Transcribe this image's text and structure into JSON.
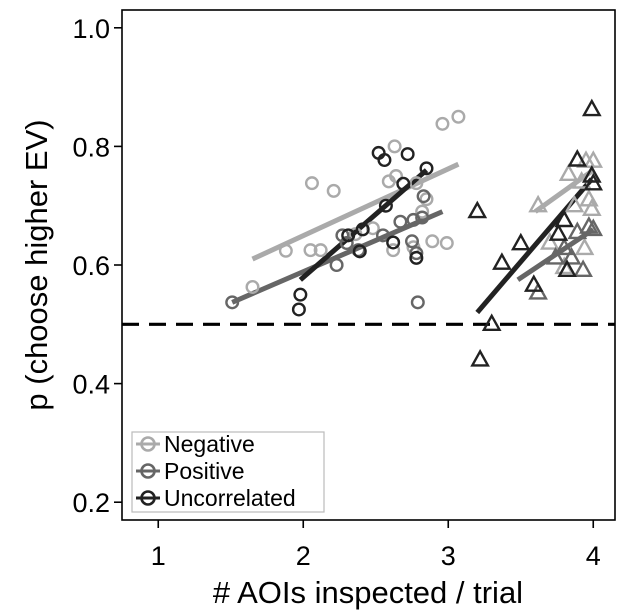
{
  "chart_data": {
    "type": "scatter",
    "title": "",
    "xlabel": "# AOIs inspected / trial",
    "ylabel": "p (choose higher EV)",
    "xlim": [
      0.75,
      4.15
    ],
    "ylim": [
      0.17,
      1.03
    ],
    "x_ticks": [
      1,
      2,
      3,
      4
    ],
    "y_ticks": [
      0.2,
      0.4,
      0.6,
      0.8,
      1.0
    ],
    "x_tick_labels": [
      "1",
      "2",
      "3",
      "4"
    ],
    "y_tick_labels": [
      "0.2",
      "0.4",
      "0.6",
      "0.8",
      "1.0"
    ],
    "grid": false,
    "legend_position": "bottom-left",
    "reference_line": {
      "y": 0.5,
      "style": "dashed",
      "color": "#000000"
    },
    "series": [
      {
        "name": "Negative",
        "color": "#aaaaaa",
        "points_circle": [
          [
            1.65,
            0.563
          ],
          [
            1.88,
            0.624
          ],
          [
            2.06,
            0.738
          ],
          [
            2.21,
            0.725
          ],
          [
            2.05,
            0.625
          ],
          [
            2.12,
            0.625
          ],
          [
            2.36,
            0.652
          ],
          [
            2.48,
            0.662
          ],
          [
            2.63,
            0.8
          ],
          [
            2.64,
            0.75
          ],
          [
            2.59,
            0.741
          ],
          [
            2.85,
            0.711
          ],
          [
            2.78,
            0.738
          ],
          [
            2.82,
            0.69
          ],
          [
            2.76,
            0.63
          ],
          [
            2.89,
            0.64
          ],
          [
            2.62,
            0.625
          ],
          [
            2.96,
            0.838
          ],
          [
            3.07,
            0.85
          ],
          [
            2.99,
            0.637
          ]
        ],
        "points_triangle": [
          [
            3.62,
            0.7
          ],
          [
            3.83,
            0.753
          ],
          [
            3.7,
            0.637
          ],
          [
            3.95,
            0.775
          ],
          [
            4.0,
            0.775
          ],
          [
            3.92,
            0.74
          ],
          [
            3.97,
            0.71
          ],
          [
            3.87,
            0.7
          ],
          [
            3.94,
            0.628
          ],
          [
            3.8,
            0.596
          ],
          [
            3.99,
            0.694
          ]
        ],
        "fit_segments": [
          {
            "x": [
              1.65,
              3.07
            ],
            "y": [
              0.61,
              0.77
            ]
          },
          {
            "x": [
              3.6,
              4.0
            ],
            "y": [
              0.69,
              0.76
            ]
          }
        ]
      },
      {
        "name": "Positive",
        "color": "#666666",
        "points_circle": [
          [
            1.51,
            0.537
          ],
          [
            2.23,
            0.6
          ],
          [
            2.38,
            0.625
          ],
          [
            2.3,
            0.637
          ],
          [
            2.55,
            0.65
          ],
          [
            2.67,
            0.673
          ],
          [
            2.75,
            0.64
          ],
          [
            2.78,
            0.62
          ],
          [
            2.82,
            0.68
          ],
          [
            2.79,
            0.537
          ],
          [
            2.76,
            0.676
          ],
          [
            2.83,
            0.716
          ],
          [
            2.27,
            0.65
          ]
        ],
        "points_triangle": [
          [
            3.62,
            0.553
          ],
          [
            3.74,
            0.612
          ],
          [
            3.8,
            0.628
          ],
          [
            3.85,
            0.612
          ],
          [
            3.89,
            0.655
          ],
          [
            3.93,
            0.591
          ],
          [
            3.97,
            0.664
          ],
          [
            4.0,
            0.66
          ]
        ],
        "fit_segments": [
          {
            "x": [
              1.51,
              2.96
            ],
            "y": [
              0.537,
              0.69
            ]
          },
          {
            "x": [
              3.48,
              4.0
            ],
            "y": [
              0.575,
              0.66
            ]
          }
        ]
      },
      {
        "name": "Uncorrelated",
        "color": "#222222",
        "points_circle": [
          [
            1.98,
            0.55
          ],
          [
            1.97,
            0.525
          ],
          [
            2.31,
            0.65
          ],
          [
            2.39,
            0.623
          ],
          [
            2.41,
            0.66
          ],
          [
            2.52,
            0.789
          ],
          [
            2.56,
            0.777
          ],
          [
            2.57,
            0.7
          ],
          [
            2.62,
            0.638
          ],
          [
            2.69,
            0.737
          ],
          [
            2.72,
            0.787
          ],
          [
            2.78,
            0.612
          ],
          [
            2.85,
            0.763
          ]
        ],
        "points_triangle": [
          [
            3.2,
            0.69
          ],
          [
            3.22,
            0.44
          ],
          [
            3.3,
            0.5
          ],
          [
            3.37,
            0.603
          ],
          [
            3.5,
            0.636
          ],
          [
            3.59,
            0.566
          ],
          [
            3.76,
            0.652
          ],
          [
            3.8,
            0.675
          ],
          [
            3.82,
            0.591
          ],
          [
            3.89,
            0.777
          ],
          [
            3.99,
            0.862
          ],
          [
            3.99,
            0.75
          ],
          [
            4.0,
            0.737
          ]
        ],
        "fit_segments": [
          {
            "x": [
              1.98,
              2.85
            ],
            "y": [
              0.575,
              0.76
            ]
          },
          {
            "x": [
              3.2,
              3.99
            ],
            "y": [
              0.52,
              0.745
            ]
          }
        ]
      }
    ]
  }
}
